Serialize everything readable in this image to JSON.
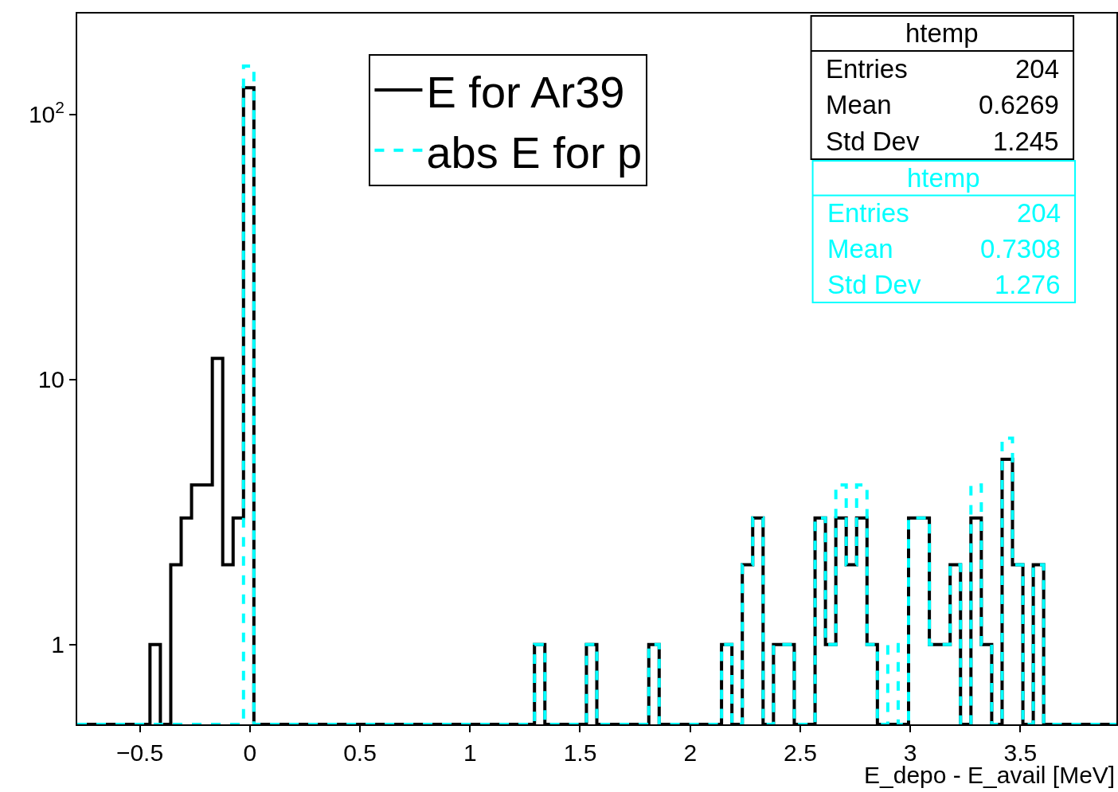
{
  "chart_data": {
    "type": "histogram",
    "xlabel": "E_depo - E_avail [MeV]",
    "bins": [
      -0.784,
      -0.7368,
      -0.6896,
      -0.6424,
      -0.5952,
      -0.548,
      -0.5008,
      -0.4536,
      -0.4064,
      -0.3592,
      -0.312,
      -0.2648,
      -0.2176,
      -0.1704,
      -0.1232,
      -0.076,
      -0.0288,
      0.0184,
      0.0656,
      0.1128,
      0.16,
      0.2072,
      0.2544,
      0.3016,
      0.3488,
      0.396,
      0.4432,
      0.4904,
      0.5376,
      0.5848,
      0.632,
      0.6792,
      0.7264,
      0.7736,
      0.8208,
      0.868,
      0.9152,
      0.9624,
      1.0096,
      1.0568,
      1.104,
      1.1512,
      1.1984,
      1.2456,
      1.2928,
      1.34,
      1.3872,
      1.4344,
      1.4816,
      1.5288,
      1.576,
      1.6232,
      1.6704,
      1.7176,
      1.7648,
      1.812,
      1.8592,
      1.9064,
      1.9536,
      2.0008,
      2.048,
      2.0952,
      2.1424,
      2.1896,
      2.2368,
      2.284,
      2.3312,
      2.3784,
      2.4256,
      2.4728,
      2.52,
      2.5672,
      2.6144,
      2.6616,
      2.7088,
      2.756,
      2.8032,
      2.8504,
      2.8976,
      2.9448,
      2.992,
      3.0392,
      3.0864,
      3.1336,
      3.1808,
      3.228,
      3.2752,
      3.3224,
      3.3696,
      3.4168,
      3.464,
      3.5112,
      3.5584,
      3.6056,
      3.6528,
      3.7,
      3.7472,
      3.7944,
      3.8416,
      3.8888,
      3.936
    ],
    "series": [
      {
        "name": "E for Ar39",
        "color": "#000000",
        "line_style": "solid",
        "values": [
          null,
          null,
          null,
          null,
          null,
          null,
          null,
          1,
          null,
          2,
          3,
          4,
          4,
          12,
          2,
          3,
          126,
          null,
          null,
          null,
          null,
          null,
          null,
          null,
          null,
          null,
          null,
          null,
          null,
          null,
          null,
          null,
          null,
          null,
          null,
          null,
          null,
          null,
          null,
          null,
          null,
          null,
          null,
          null,
          1,
          null,
          null,
          null,
          null,
          1,
          null,
          null,
          null,
          null,
          null,
          1,
          null,
          null,
          null,
          null,
          null,
          null,
          1,
          null,
          2,
          3,
          null,
          1,
          1,
          null,
          null,
          3,
          1,
          3,
          2,
          3,
          1,
          null,
          null,
          null,
          3,
          3,
          1,
          1,
          2,
          null,
          3,
          1,
          null,
          5,
          2,
          null,
          2,
          null,
          null,
          null,
          null,
          null,
          null,
          null
        ]
      },
      {
        "name": "abs E for p",
        "color": "#00ffff",
        "line_style": "dashed",
        "values": [
          null,
          null,
          null,
          null,
          null,
          null,
          null,
          null,
          null,
          null,
          null,
          null,
          null,
          null,
          null,
          null,
          152,
          null,
          null,
          null,
          null,
          null,
          null,
          null,
          null,
          null,
          null,
          null,
          null,
          null,
          null,
          null,
          null,
          null,
          null,
          null,
          null,
          null,
          null,
          null,
          null,
          null,
          null,
          null,
          1,
          null,
          null,
          null,
          null,
          1,
          null,
          null,
          null,
          null,
          null,
          1,
          null,
          null,
          null,
          null,
          null,
          null,
          1,
          null,
          2,
          3,
          null,
          1,
          1,
          null,
          null,
          3,
          1,
          4,
          2,
          4,
          1,
          null,
          1,
          null,
          3,
          3,
          1,
          1,
          2,
          null,
          4,
          1,
          null,
          6,
          2,
          null,
          2,
          null,
          null,
          null,
          null,
          null,
          null,
          null
        ]
      }
    ],
    "xlim": [
      -0.784,
      3.936
    ],
    "xticks": [
      {
        "value": -0.5,
        "label": "−0.5"
      },
      0,
      0.5,
      1,
      1.5,
      2,
      2.5,
      3,
      3.5
    ],
    "ylim": [
      0.5,
      240
    ],
    "yticks": [
      1,
      10,
      {
        "value": 100,
        "label": "10$^{2}$"
      }
    ],
    "log": "y",
    "legend": "top",
    "annotations": [
      "htemp",
      "Entries",
      "204",
      "Mean",
      "0.6269",
      "Std Dev",
      "1.245",
      "htemp",
      "Entries",
      "204",
      "Mean",
      "0.7308",
      "Std Dev",
      "1.276"
    ]
  }
}
